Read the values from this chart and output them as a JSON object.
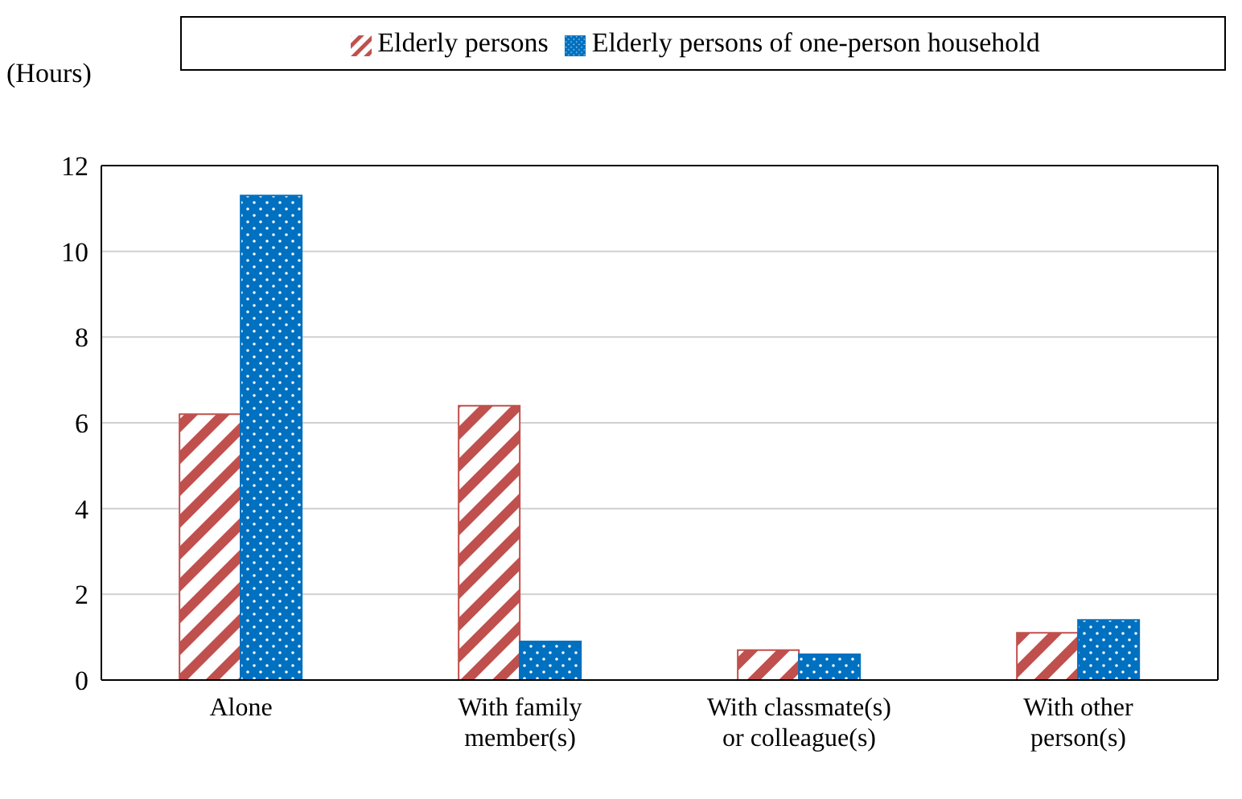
{
  "chart_data": {
    "type": "bar",
    "ylabel": "(Hours)",
    "categories": [
      "Alone",
      "With family member(s)",
      "With classmate(s) or colleague(s)",
      "With other person(s)"
    ],
    "series": [
      {
        "name": "Elderly persons",
        "color": "#c0504d",
        "values": [
          6.2,
          6.4,
          0.7,
          1.1
        ]
      },
      {
        "name": "Elderly persons of one-person household",
        "color": "#0070c0",
        "values": [
          11.3,
          0.9,
          0.6,
          1.4
        ]
      }
    ],
    "ylim": [
      0,
      12
    ],
    "yticks": [
      0,
      2,
      4,
      6,
      8,
      10,
      12
    ],
    "grid": "y",
    "legend": "top"
  }
}
